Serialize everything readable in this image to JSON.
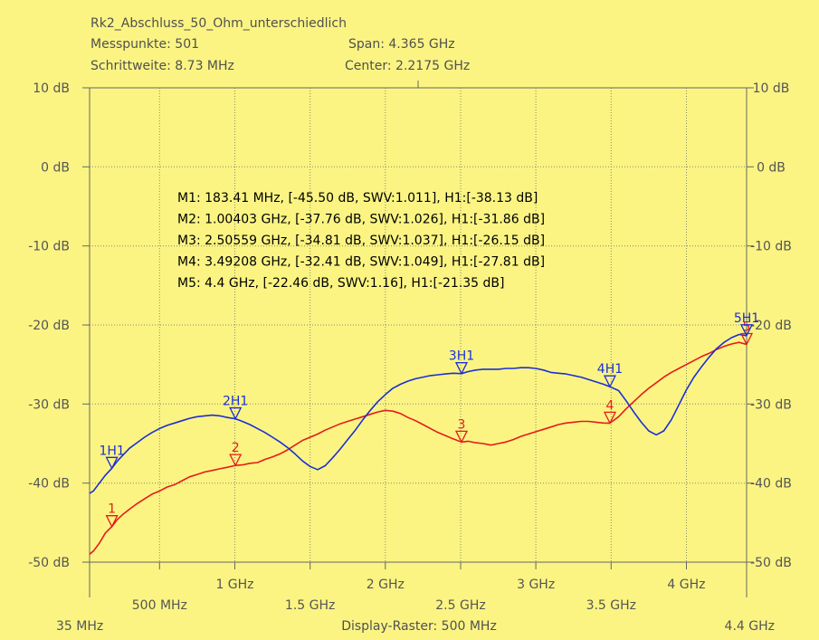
{
  "header": {
    "title": "Rk2_Abschluss_50_Ohm_unterschiedlich",
    "messpunkte": "Messpunkte:  501",
    "schrittweite": "Schrittweite: 8.73 MHz",
    "span": "Span: 4.365 GHz",
    "center": "Center: 2.2175 GHz",
    "display_raster": "Display-Raster: 500 MHz"
  },
  "chart_data": {
    "type": "line",
    "xlabel": "",
    "ylabel": "",
    "xlim": [
      35,
      4400
    ],
    "ylim": [
      -50,
      10
    ],
    "grid": true,
    "y_ticks": [
      {
        "value": 10,
        "label": "10 dB"
      },
      {
        "value": 0,
        "label": "0 dB"
      },
      {
        "value": -10,
        "label": "-10 dB"
      },
      {
        "value": -20,
        "label": "-20 dB"
      },
      {
        "value": -30,
        "label": "-30 dB"
      },
      {
        "value": -40,
        "label": "-40 dB"
      },
      {
        "value": -50,
        "label": "-50 dB"
      }
    ],
    "x_ticks_upper": [
      {
        "value": 1000,
        "label": "1 GHz"
      },
      {
        "value": 2000,
        "label": "2 GHz"
      },
      {
        "value": 3000,
        "label": "3 GHz"
      },
      {
        "value": 4000,
        "label": "4 GHz"
      }
    ],
    "x_ticks_lower": [
      {
        "value": 500,
        "label": "500 MHz"
      },
      {
        "value": 1500,
        "label": "1.5 GHz"
      },
      {
        "value": 2500,
        "label": "2.5 GHz"
      },
      {
        "value": 3500,
        "label": "3.5 GHz"
      }
    ],
    "x_end_labels": [
      {
        "value": 35,
        "label": "35 MHz"
      },
      {
        "value": 4400,
        "label": "4.4 GHz"
      }
    ],
    "series": [
      {
        "color": "#e51b1b",
        "x": [
          35,
          60,
          100,
          140,
          183,
          220,
          260,
          300,
          350,
          400,
          450,
          500,
          550,
          600,
          650,
          700,
          750,
          800,
          850,
          900,
          950,
          1004,
          1050,
          1100,
          1150,
          1200,
          1250,
          1300,
          1350,
          1400,
          1450,
          1500,
          1550,
          1600,
          1650,
          1700,
          1750,
          1800,
          1850,
          1900,
          1950,
          2000,
          2050,
          2100,
          2150,
          2200,
          2250,
          2300,
          2350,
          2400,
          2450,
          2506,
          2550,
          2600,
          2650,
          2700,
          2750,
          2800,
          2850,
          2900,
          2950,
          3000,
          3050,
          3100,
          3150,
          3200,
          3250,
          3300,
          3350,
          3400,
          3450,
          3492,
          3550,
          3600,
          3650,
          3700,
          3750,
          3800,
          3850,
          3900,
          3950,
          4000,
          4050,
          4100,
          4150,
          4200,
          4250,
          4300,
          4350,
          4400
        ],
        "y": [
          -49,
          -48.6,
          -47.6,
          -46.3,
          -45.5,
          -44.6,
          -43.9,
          -43.3,
          -42.6,
          -42,
          -41.4,
          -41,
          -40.5,
          -40.2,
          -39.7,
          -39.2,
          -38.9,
          -38.6,
          -38.4,
          -38.2,
          -38,
          -37.76,
          -37.7,
          -37.5,
          -37.4,
          -37,
          -36.7,
          -36.3,
          -35.8,
          -35.2,
          -34.6,
          -34.2,
          -33.8,
          -33.3,
          -32.9,
          -32.5,
          -32.2,
          -31.9,
          -31.6,
          -31.3,
          -31,
          -30.8,
          -30.9,
          -31.2,
          -31.7,
          -32.1,
          -32.6,
          -33.1,
          -33.6,
          -34,
          -34.4,
          -34.81,
          -34.7,
          -34.9,
          -35,
          -35.2,
          -35,
          -34.8,
          -34.5,
          -34.1,
          -33.8,
          -33.5,
          -33.2,
          -32.9,
          -32.6,
          -32.4,
          -32.3,
          -32.2,
          -32.2,
          -32.3,
          -32.4,
          -32.41,
          -31.6,
          -30.6,
          -29.7,
          -28.8,
          -28,
          -27.3,
          -26.6,
          -26,
          -25.5,
          -25,
          -24.5,
          -24,
          -23.6,
          -23.1,
          -22.7,
          -22.4,
          -22.2,
          -22.46
        ]
      },
      {
        "color": "#1b2fd6",
        "x": [
          35,
          60,
          100,
          140,
          183,
          220,
          260,
          300,
          350,
          400,
          450,
          500,
          550,
          600,
          650,
          700,
          750,
          800,
          850,
          900,
          950,
          1004,
          1050,
          1100,
          1150,
          1200,
          1250,
          1300,
          1350,
          1400,
          1450,
          1500,
          1550,
          1600,
          1650,
          1700,
          1750,
          1800,
          1850,
          1900,
          1950,
          2000,
          2050,
          2100,
          2150,
          2200,
          2250,
          2300,
          2350,
          2400,
          2450,
          2506,
          2550,
          2600,
          2650,
          2700,
          2750,
          2800,
          2850,
          2900,
          2950,
          3000,
          3050,
          3100,
          3150,
          3200,
          3250,
          3300,
          3350,
          3400,
          3450,
          3492,
          3550,
          3600,
          3650,
          3700,
          3750,
          3800,
          3850,
          3900,
          3950,
          4000,
          4050,
          4100,
          4150,
          4200,
          4250,
          4300,
          4350,
          4400
        ],
        "y": [
          -41.3,
          -41,
          -40,
          -39,
          -38.13,
          -37.2,
          -36.4,
          -35.6,
          -34.9,
          -34.2,
          -33.6,
          -33.1,
          -32.7,
          -32.4,
          -32.1,
          -31.8,
          -31.6,
          -31.5,
          -31.4,
          -31.5,
          -31.7,
          -31.86,
          -32.2,
          -32.6,
          -33.1,
          -33.6,
          -34.2,
          -34.8,
          -35.5,
          -36.3,
          -37.2,
          -37.9,
          -38.3,
          -37.8,
          -36.8,
          -35.7,
          -34.5,
          -33.3,
          -32,
          -30.8,
          -29.7,
          -28.8,
          -28,
          -27.5,
          -27.1,
          -26.8,
          -26.6,
          -26.4,
          -26.3,
          -26.2,
          -26.1,
          -26.15,
          -25.9,
          -25.7,
          -25.6,
          -25.6,
          -25.6,
          -25.5,
          -25.5,
          -25.4,
          -25.4,
          -25.5,
          -25.7,
          -26,
          -26.1,
          -26.2,
          -26.4,
          -26.6,
          -26.9,
          -27.2,
          -27.5,
          -27.81,
          -28.3,
          -29.6,
          -31,
          -32.3,
          -33.4,
          -33.9,
          -33.4,
          -32,
          -30.1,
          -28.2,
          -26.6,
          -25.3,
          -24.1,
          -23,
          -22.2,
          -21.6,
          -21.2,
          -21.35
        ]
      }
    ],
    "markers": [
      {
        "label": "1",
        "series": 0,
        "x": 183,
        "y": -45.5
      },
      {
        "label": "2",
        "series": 0,
        "x": 1004,
        "y": -37.76
      },
      {
        "label": "3",
        "series": 0,
        "x": 2506,
        "y": -34.81
      },
      {
        "label": "4",
        "series": 0,
        "x": 3492,
        "y": -32.41
      },
      {
        "label": "5",
        "series": 0,
        "x": 4400,
        "y": -22.46
      },
      {
        "label": "1H1",
        "series": 1,
        "x": 183,
        "y": -38.13
      },
      {
        "label": "2H1",
        "series": 1,
        "x": 1004,
        "y": -31.86
      },
      {
        "label": "3H1",
        "series": 1,
        "x": 2506,
        "y": -26.15
      },
      {
        "label": "4H1",
        "series": 1,
        "x": 3492,
        "y": -27.81
      },
      {
        "label": "5H1",
        "series": 1,
        "x": 4400,
        "y": -21.35
      }
    ],
    "annotations": [
      "M1: 183.41 MHz, [-45.50 dB, SWV:1.011], H1:[-38.13 dB]",
      "M2: 1.00403 GHz, [-37.76 dB, SWV:1.026], H1:[-31.86 dB]",
      "M3: 2.50559 GHz, [-34.81 dB, SWV:1.037], H1:[-26.15 dB]",
      "M4: 3.49208 GHz, [-32.41 dB, SWV:1.049], H1:[-27.81 dB]",
      "M5: 4.4 GHz, [-22.46 dB, SWV:1.16], H1:[-21.35 dB]"
    ]
  }
}
